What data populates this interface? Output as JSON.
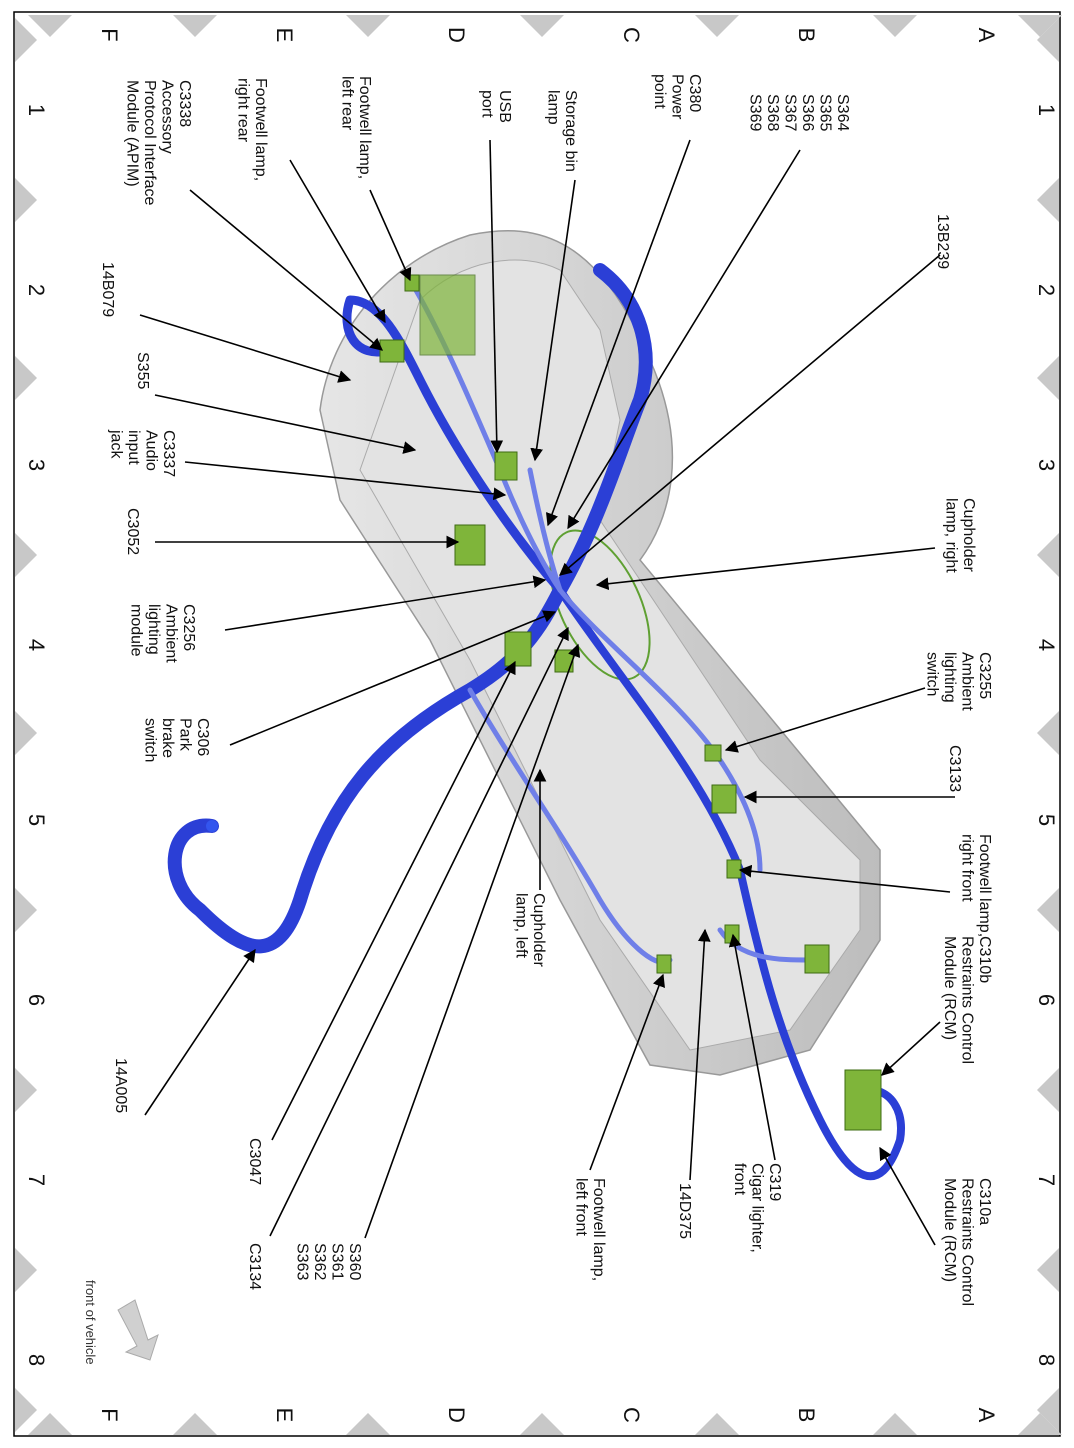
{
  "grid": {
    "rows": [
      "A",
      "B",
      "C",
      "D",
      "E",
      "F"
    ],
    "columns": [
      "1",
      "2",
      "3",
      "4",
      "5",
      "6",
      "7",
      "8"
    ]
  },
  "callouts": [
    {
      "lines": [
        "S364",
        "S365",
        "S366",
        "S367",
        "S368",
        "S369"
      ]
    },
    {
      "lines": [
        "C380",
        "Power",
        "point"
      ]
    },
    {
      "lines": [
        "Storage bin",
        "lamp"
      ]
    },
    {
      "lines": [
        "USB",
        "port"
      ]
    },
    {
      "lines": [
        "Footwell lamp,",
        "left rear"
      ]
    },
    {
      "lines": [
        "Footwell lamp,",
        "right rear"
      ]
    },
    {
      "lines": [
        "C3338",
        "Accessory",
        "Protocol Interface",
        "Module (APIM)"
      ]
    },
    {
      "lines": [
        "13B239"
      ]
    },
    {
      "lines": [
        "14B079"
      ]
    },
    {
      "lines": [
        "S355"
      ]
    },
    {
      "lines": [
        "C3337",
        "Audio",
        "input",
        "jack"
      ]
    },
    {
      "lines": [
        "C3052"
      ]
    },
    {
      "lines": [
        "C3256",
        "Ambient",
        "lighting",
        "module"
      ]
    },
    {
      "lines": [
        "C306",
        "Park",
        "brake",
        "switch"
      ]
    },
    {
      "lines": [
        "Cupholder",
        "lamp, right"
      ]
    },
    {
      "lines": [
        "C3255",
        "Ambient",
        "lighting",
        "switch"
      ]
    },
    {
      "lines": [
        "C3133"
      ]
    },
    {
      "lines": [
        "Footwell lamp,",
        "right front"
      ]
    },
    {
      "lines": [
        "C310b",
        "Restraints Control",
        "Module (RCM)"
      ]
    },
    {
      "lines": [
        "C310a",
        "Restraints Control",
        "Module (RCM)"
      ]
    },
    {
      "lines": [
        "C319",
        "Cigar lighter,",
        "front"
      ]
    },
    {
      "lines": [
        "14D375"
      ]
    },
    {
      "lines": [
        "Footwell lamp,",
        "left front"
      ]
    },
    {
      "lines": [
        "Cupholder",
        "lamp, left"
      ]
    },
    {
      "lines": [
        "S360",
        "S361",
        "S362",
        "S363"
      ]
    },
    {
      "lines": [
        "C3134"
      ]
    },
    {
      "lines": [
        "C3047"
      ]
    },
    {
      "lines": [
        "14A005"
      ]
    }
  ],
  "note": "front of vehicle"
}
